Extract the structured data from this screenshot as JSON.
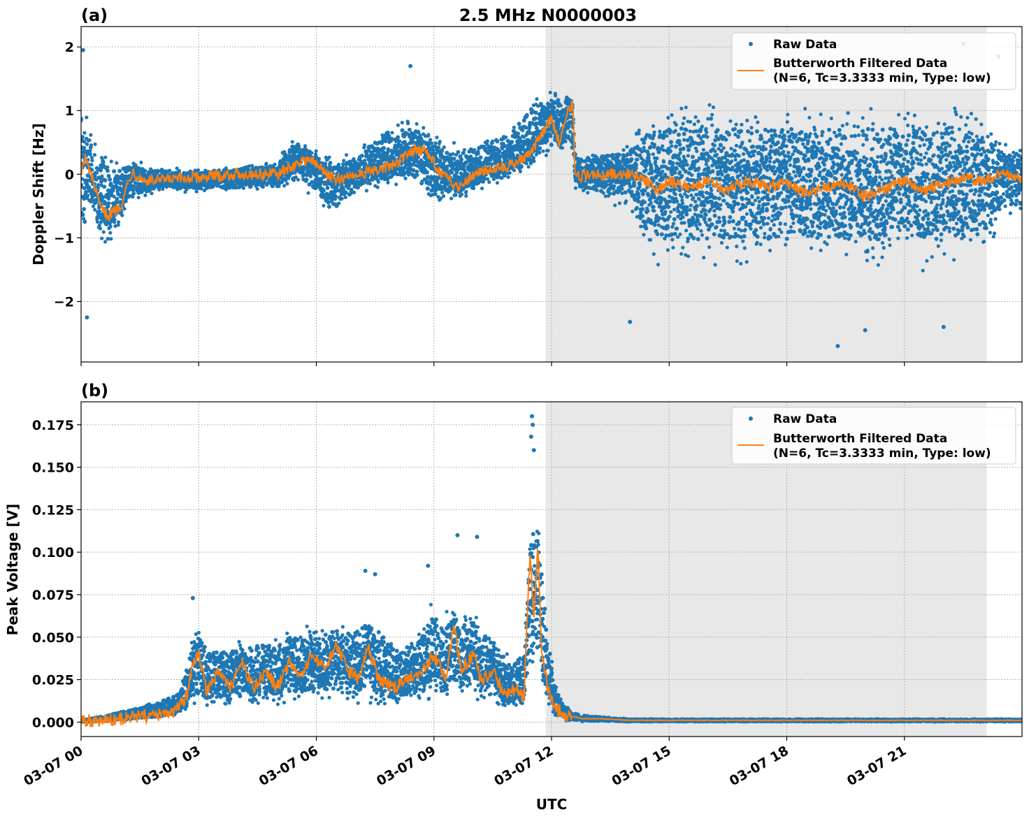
{
  "figure_title": "2.5 MHz N0000003",
  "colors": {
    "raw": "#1f77b4",
    "filtered": "#ff7f0e",
    "shade": "#e8e8e8"
  },
  "xaxis": {
    "label": "UTC",
    "ticks": [
      0,
      3,
      6,
      9,
      12,
      15,
      18,
      21
    ],
    "tick_labels": [
      "03-07 00",
      "03-07 03",
      "03-07 06",
      "03-07 09",
      "03-07 12",
      "03-07 15",
      "03-07 18",
      "03-07 21"
    ]
  },
  "legend": {
    "raw_label": "Raw Data",
    "filtered_label_line1": "Butterworth Filtered Data",
    "filtered_label_line2": "(N=6, Tc=3.3333 min, Type: low)"
  },
  "chart_data": [
    {
      "type": "scatter",
      "panel": "(a)",
      "ylabel": "Doppler Shift [Hz]",
      "xlim": [
        0,
        24
      ],
      "ylim": [
        -2.95,
        2.32
      ],
      "yticks": [
        -2,
        -1,
        0,
        1,
        2
      ],
      "ytick_labels": [
        "−2",
        "−1",
        "0",
        "1",
        "2"
      ],
      "grid": true,
      "legend_position": "top-right",
      "shaded_span_hours": [
        11.85,
        23.1
      ],
      "raw_envelope": {
        "x": [
          0,
          0.3,
          0.7,
          1.2,
          2,
          3,
          4,
          5,
          5.5,
          6,
          6.4,
          7,
          7.8,
          8.5,
          9,
          9.5,
          10,
          10.5,
          11,
          11.5,
          12,
          12.5,
          12.6,
          13,
          14,
          14.5,
          15,
          16,
          17,
          18,
          19,
          20,
          21,
          22,
          23,
          23.5,
          24
        ],
        "upper": [
          1.3,
          0.9,
          0.6,
          0.3,
          0.15,
          0.1,
          0.15,
          0.25,
          0.7,
          0.4,
          0.3,
          0.4,
          0.9,
          1.0,
          0.7,
          0.6,
          0.6,
          0.7,
          0.9,
          1.3,
          1.4,
          1.4,
          0.5,
          0.4,
          0.6,
          1.2,
          1.3,
          1.3,
          1.3,
          1.3,
          1.3,
          1.3,
          1.3,
          1.3,
          1.2,
          0.6,
          0.6
        ],
        "lower": [
          -1.4,
          -1.0,
          -1.2,
          -0.5,
          -0.3,
          -0.3,
          -0.3,
          -0.3,
          -0.2,
          -0.4,
          -0.8,
          -0.4,
          -0.2,
          -0.3,
          -0.6,
          -0.5,
          -0.4,
          -0.2,
          -0.1,
          0.1,
          0.2,
          0.3,
          -0.3,
          -0.4,
          -0.6,
          -1.5,
          -1.6,
          -1.6,
          -1.6,
          -1.6,
          -1.6,
          -1.6,
          -1.6,
          -1.6,
          -1.5,
          -0.7,
          -0.8
        ]
      },
      "filtered": {
        "x": [
          0,
          0.1,
          0.3,
          0.5,
          0.7,
          1.0,
          1.3,
          1.6,
          2.0,
          3.0,
          4.0,
          5.0,
          5.5,
          5.8,
          6.2,
          6.5,
          7.0,
          7.5,
          8.0,
          8.5,
          8.8,
          9.2,
          9.6,
          10.0,
          10.5,
          11.0,
          11.5,
          11.8,
          12.0,
          12.2,
          12.4,
          12.55,
          12.6,
          13.0,
          13.5,
          14.0,
          14.3,
          14.7,
          15.0,
          15.5,
          16.0,
          16.5,
          17.0,
          17.5,
          18.0,
          18.5,
          19.0,
          19.5,
          20.0,
          20.5,
          21.0,
          21.5,
          22.0,
          22.5,
          23.0,
          23.5,
          24.0
        ],
        "y": [
          0.05,
          0.25,
          -0.1,
          -0.55,
          -0.65,
          -0.5,
          0.05,
          -0.1,
          -0.1,
          -0.05,
          0.0,
          0.0,
          0.15,
          0.25,
          0.05,
          -0.1,
          0.0,
          0.05,
          0.15,
          0.4,
          0.35,
          0.0,
          -0.2,
          0.0,
          0.1,
          0.15,
          0.35,
          0.7,
          0.85,
          0.5,
          1.0,
          1.1,
          -0.05,
          0.0,
          0.0,
          0.0,
          -0.05,
          -0.25,
          -0.1,
          -0.2,
          -0.1,
          -0.25,
          -0.1,
          -0.2,
          -0.15,
          -0.3,
          -0.2,
          -0.15,
          -0.35,
          -0.25,
          -0.1,
          -0.25,
          -0.15,
          -0.05,
          -0.1,
          0.0,
          -0.05
        ]
      },
      "outliers": [
        {
          "x": 0.05,
          "y": 1.95
        },
        {
          "x": 0.15,
          "y": -2.25
        },
        {
          "x": 8.4,
          "y": 1.7
        },
        {
          "x": 14.0,
          "y": -2.32
        },
        {
          "x": 19.3,
          "y": -2.7
        },
        {
          "x": 20.0,
          "y": -2.45
        },
        {
          "x": 22.0,
          "y": -2.4
        },
        {
          "x": 22.5,
          "y": 2.05
        },
        {
          "x": 23.4,
          "y": 1.85
        }
      ]
    },
    {
      "type": "scatter",
      "panel": "(b)",
      "ylabel": "Peak Voltage [V]",
      "xlim": [
        0,
        24
      ],
      "ylim": [
        -0.0085,
        0.1885
      ],
      "yticks": [
        0.0,
        0.025,
        0.05,
        0.075,
        0.1,
        0.125,
        0.15,
        0.175
      ],
      "ytick_labels": [
        "0.000",
        "0.025",
        "0.050",
        "0.075",
        "0.100",
        "0.125",
        "0.150",
        "0.175"
      ],
      "grid": true,
      "legend_position": "top-right",
      "shaded_span_hours": [
        11.85,
        23.1
      ],
      "raw_envelope": {
        "x": [
          0,
          0.5,
          1.0,
          1.5,
          2.0,
          2.5,
          2.8,
          3.0,
          3.3,
          3.8,
          4.3,
          5.0,
          5.5,
          6.0,
          6.5,
          7.0,
          7.3,
          7.6,
          8.0,
          8.5,
          9.0,
          9.3,
          9.6,
          10.0,
          10.3,
          10.7,
          11.0,
          11.3,
          11.5,
          11.7,
          11.9,
          12.1,
          12.3,
          12.6,
          13.0,
          14.0,
          18.0,
          24.0
        ],
        "upper": [
          0.001,
          0.004,
          0.007,
          0.01,
          0.014,
          0.02,
          0.05,
          0.06,
          0.05,
          0.05,
          0.055,
          0.055,
          0.06,
          0.06,
          0.065,
          0.065,
          0.07,
          0.065,
          0.05,
          0.055,
          0.075,
          0.07,
          0.07,
          0.075,
          0.065,
          0.05,
          0.04,
          0.05,
          0.14,
          0.12,
          0.06,
          0.025,
          0.012,
          0.006,
          0.004,
          0.002,
          0.002,
          0.002
        ],
        "lower": [
          0.0,
          0.0,
          0.001,
          0.002,
          0.003,
          0.004,
          0.006,
          0.006,
          0.006,
          0.006,
          0.006,
          0.007,
          0.008,
          0.008,
          0.008,
          0.008,
          0.008,
          0.008,
          0.008,
          0.01,
          0.012,
          0.012,
          0.012,
          0.012,
          0.01,
          0.008,
          0.006,
          0.006,
          0.02,
          0.02,
          0.01,
          0.003,
          0.001,
          0.0,
          0.0,
          0.0,
          0.0,
          0.0
        ]
      },
      "filtered": {
        "x": [
          0,
          0.5,
          1.0,
          1.5,
          2.0,
          2.4,
          2.7,
          2.85,
          3.0,
          3.2,
          3.5,
          3.8,
          4.1,
          4.4,
          4.7,
          5.0,
          5.3,
          5.6,
          5.9,
          6.2,
          6.5,
          6.8,
          7.1,
          7.3,
          7.6,
          8.0,
          8.3,
          8.7,
          9.0,
          9.3,
          9.5,
          9.7,
          10.0,
          10.2,
          10.5,
          10.8,
          11.1,
          11.3,
          11.45,
          11.55,
          11.65,
          11.75,
          11.9,
          12.1,
          12.4,
          12.8,
          13.2,
          14.0,
          18.0,
          24.0
        ],
        "y": [
          0.0005,
          0.001,
          0.002,
          0.003,
          0.004,
          0.006,
          0.015,
          0.035,
          0.04,
          0.018,
          0.03,
          0.02,
          0.035,
          0.02,
          0.03,
          0.02,
          0.035,
          0.025,
          0.04,
          0.03,
          0.045,
          0.03,
          0.025,
          0.045,
          0.025,
          0.02,
          0.025,
          0.03,
          0.04,
          0.025,
          0.057,
          0.03,
          0.04,
          0.025,
          0.03,
          0.015,
          0.02,
          0.015,
          0.1,
          0.06,
          0.105,
          0.04,
          0.02,
          0.008,
          0.004,
          0.002,
          0.002,
          0.001,
          0.001,
          0.001
        ]
      },
      "outliers": [
        {
          "x": 2.85,
          "y": 0.073
        },
        {
          "x": 7.25,
          "y": 0.089
        },
        {
          "x": 7.5,
          "y": 0.087
        },
        {
          "x": 8.85,
          "y": 0.092
        },
        {
          "x": 9.6,
          "y": 0.11
        },
        {
          "x": 10.1,
          "y": 0.109
        },
        {
          "x": 11.5,
          "y": 0.18
        },
        {
          "x": 11.52,
          "y": 0.175
        },
        {
          "x": 11.48,
          "y": 0.168
        },
        {
          "x": 11.55,
          "y": 0.16
        }
      ]
    }
  ]
}
